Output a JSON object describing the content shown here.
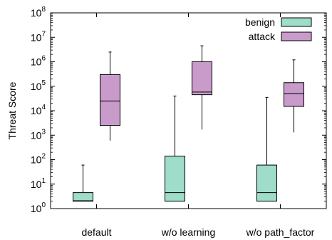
{
  "chart_data": {
    "type": "box",
    "title": "",
    "xlabel": "",
    "ylabel": "Threat Score",
    "yscale": "log",
    "ylim": [
      1,
      100000000
    ],
    "y_ticks": [
      {
        "base": "10",
        "exp": "0"
      },
      {
        "base": "10",
        "exp": "1"
      },
      {
        "base": "10",
        "exp": "2"
      },
      {
        "base": "10",
        "exp": "3"
      },
      {
        "base": "10",
        "exp": "4"
      },
      {
        "base": "10",
        "exp": "5"
      },
      {
        "base": "10",
        "exp": "6"
      },
      {
        "base": "10",
        "exp": "7"
      },
      {
        "base": "10",
        "exp": "8"
      }
    ],
    "categories": [
      "default",
      "w/o learning",
      "w/o path_factor"
    ],
    "legend_position": "top-right",
    "grid": false,
    "series": [
      {
        "name": "benign",
        "color": "#9fdcc9",
        "boxes": [
          {
            "min": 2,
            "q1": 2,
            "median": 2.1,
            "q3": 4.5,
            "max": 60
          },
          {
            "min": 2,
            "q1": 2,
            "median": 4.5,
            "q3": 140,
            "max": 40000
          },
          {
            "min": 2,
            "q1": 2,
            "median": 4.5,
            "q3": 60,
            "max": 35000
          }
        ]
      },
      {
        "name": "attack",
        "color": "#c89bcb",
        "boxes": [
          {
            "min": 600,
            "q1": 2500,
            "median": 25000,
            "q3": 300000,
            "max": 2500000
          },
          {
            "min": 1700,
            "q1": 45000,
            "median": 58000,
            "q3": 1000000,
            "max": 4500000
          },
          {
            "min": 1300,
            "q1": 15000,
            "median": 50000,
            "q3": 140000,
            "max": 1200000
          }
        ]
      }
    ]
  }
}
